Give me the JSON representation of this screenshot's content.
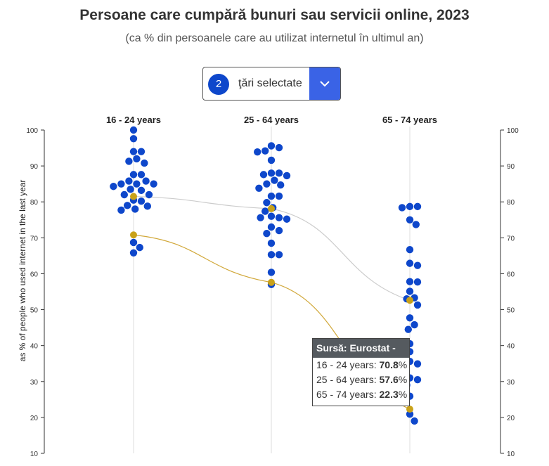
{
  "title": "Persoane care cumpără bunuri sau servicii online, 2023",
  "subtitle": "(ca % din persoanele care au utilizat internetul în ultimul an)",
  "selector": {
    "count": "2",
    "label": "ţări selectate",
    "icon": "chevron-down-icon"
  },
  "tooltip": {
    "header": "Sursă: Eurostat -",
    "rows": [
      {
        "label": "16 - 24 years: ",
        "value": "70.8",
        "unit": "%"
      },
      {
        "label": "25 - 64 years: ",
        "value": "57.6",
        "unit": "%"
      },
      {
        "label": "65 - 74 years: ",
        "value": "22.3",
        "unit": "%"
      }
    ]
  },
  "colors": {
    "dots": "#0e47cb",
    "highlight": "#c9a219",
    "highlight_line": "#d1a83a",
    "other_line": "#cccccc"
  },
  "chart_data": {
    "type": "scatter",
    "title": "Persoane care cumpără bunuri sau servicii online, 2023",
    "subtitle": "(ca % din persoanele care au utilizat internetul în ultimul an)",
    "ylabel": "as % of people who used internet in the last year",
    "ylim": [
      10,
      100
    ],
    "yticks": [
      10,
      20,
      30,
      40,
      50,
      60,
      70,
      80,
      90,
      100
    ],
    "categories": [
      "16 - 24 years",
      "25 - 64 years",
      "65 - 74 years"
    ],
    "series": [
      {
        "values": [
          [
            100,
            97.6,
            94,
            94,
            92,
            91.3,
            90.8,
            87.6,
            87.6,
            85.8,
            85.8,
            85.0,
            85.0,
            85.0,
            84.3,
            83.5,
            83.2,
            82.0,
            82.0,
            80.5,
            80.2,
            79.0,
            78.8,
            78.0,
            77.7,
            68.7,
            67.3,
            65.8
          ],
          [
            95.6,
            95.1,
            94.2,
            93.9,
            91.6,
            88.0,
            88.0,
            87.6,
            87.3,
            86.0,
            85.0,
            84.7,
            83.8,
            81.6,
            81.6,
            79.8,
            78.4,
            77.4,
            76.0,
            75.6,
            75.6,
            75.2,
            73.0,
            72.0,
            71.2,
            68.5,
            65.3,
            65.3,
            60.4,
            57.0
          ],
          [
            78.7,
            78.7,
            78.4,
            75.0,
            73.7,
            66.7,
            62.9,
            62.3,
            57.8,
            57.7,
            55.1,
            53.3,
            53.0,
            51.3,
            47.7,
            45.8,
            44.5,
            40.5,
            38.3,
            35.6,
            34.9,
            31.0,
            30.5,
            29.0,
            25.9,
            20.9,
            19.0
          ]
        ]
      },
      {
        "values": [
          81.5,
          78.1,
          52.6
        ]
      },
      {
        "values": [
          70.8,
          57.6,
          22.3
        ]
      }
    ]
  }
}
